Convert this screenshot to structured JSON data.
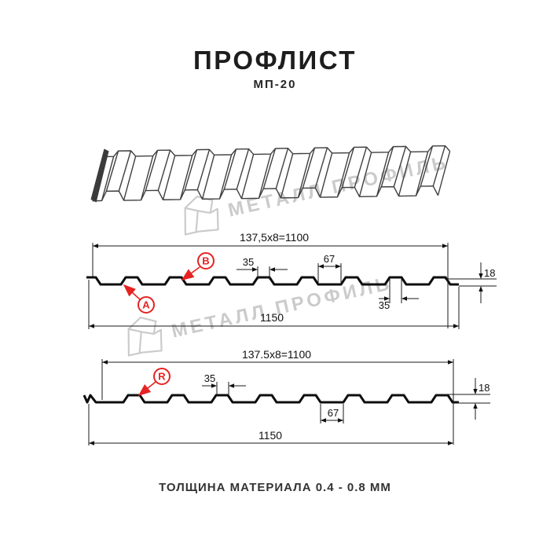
{
  "page": {
    "title": "ПРОФЛИСТ",
    "subtitle": "МП-20",
    "footer": "ТОЛЩИНА МАТЕРИАЛА 0.4 - 0.8 ММ"
  },
  "watermark": {
    "brand": "МЕТАЛЛ ПРОФИЛЬ"
  },
  "profile_top": {
    "coverage": "137,5x8=1100",
    "full_width": "1150",
    "crest_width": "35",
    "valley_width": "67",
    "crest_width_2": "35",
    "height": "18",
    "label_a": "A",
    "label_b": "B"
  },
  "profile_bottom": {
    "coverage": "137.5x8=1100",
    "full_width": "1150",
    "crest_width": "35",
    "valley_width": "67",
    "height": "18",
    "label_r": "R"
  },
  "colors": {
    "accent_red": "#e62222",
    "line_black": "#1a1a1a",
    "watermark_gray": "#cbcbcb"
  }
}
